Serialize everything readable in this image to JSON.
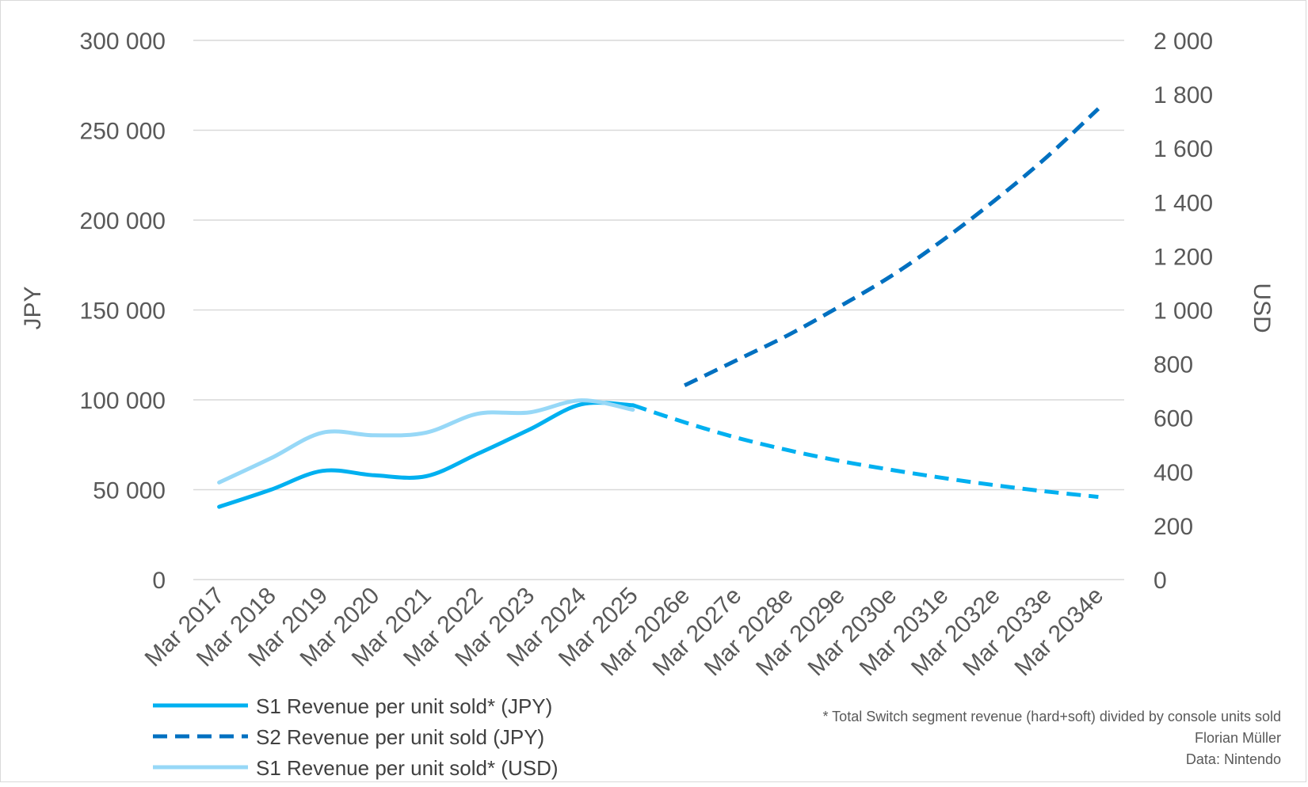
{
  "chart_data": {
    "type": "line",
    "categories": [
      "Mar 2017",
      "Mar 2018",
      "Mar 2019",
      "Mar 2020",
      "Mar 2021",
      "Mar 2022",
      "Mar 2023",
      "Mar 2024",
      "Mar 2025",
      "Mar 2026e",
      "Mar 2027e",
      "Mar 2028e",
      "Mar 2029e",
      "Mar 2030e",
      "Mar 2031e",
      "Mar 2032e",
      "Mar 2033e",
      "Mar 2034e"
    ],
    "ylabel": "JPY",
    "y2label": "USD",
    "ylim": [
      0,
      300000
    ],
    "y2lim": [
      0,
      2000
    ],
    "yticks": [
      "0",
      "50 000",
      "100 000",
      "150 000",
      "200 000",
      "250 000",
      "300 000"
    ],
    "y2ticks": [
      "0",
      "200",
      "400",
      "600",
      "800",
      "1 000",
      "1 200",
      "1 400",
      "1 600",
      "1 800",
      "2 000"
    ],
    "grid": true,
    "legend_position": "bottom-left",
    "series": [
      {
        "name": "S1 Revenue per unit sold* (JPY)",
        "axis": "left",
        "color": "#00b0f0",
        "values": [
          40500,
          50000,
          60500,
          58000,
          57500,
          70000,
          83500,
          97500,
          97000,
          87500,
          79000,
          72000,
          66000,
          61000,
          56500,
          52500,
          49000,
          46000
        ],
        "dashed_from_index": 8
      },
      {
        "name": "S2 Revenue per unit sold (JPY)",
        "axis": "left",
        "color": "#0070c0",
        "dashed": true,
        "values": [
          null,
          null,
          null,
          null,
          null,
          null,
          null,
          null,
          null,
          108000,
          122000,
          136000,
          152000,
          169000,
          189000,
          211000,
          235000,
          262000
        ]
      },
      {
        "name": "S1 Revenue per unit sold* (USD)",
        "axis": "right",
        "color": "#97d8f7",
        "values": [
          360,
          450,
          545,
          535,
          545,
          615,
          620,
          665,
          630,
          null,
          null,
          null,
          null,
          null,
          null,
          null,
          null,
          null
        ]
      }
    ]
  },
  "notes": {
    "footnote": "* Total Switch segment revenue (hard+soft) divided by console units sold",
    "author": "Florian Müller",
    "source": "Data: Nintendo"
  }
}
